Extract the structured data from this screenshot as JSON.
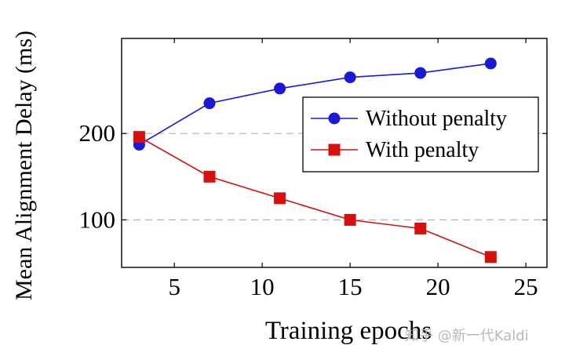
{
  "chart_data": {
    "type": "line",
    "xlabel": "Training epochs",
    "ylabel": "Mean Alignment Delay (ms)",
    "xlim": [
      2,
      26.2
    ],
    "ylim": [
      45,
      310
    ],
    "xticks": [
      5,
      10,
      15,
      20,
      25
    ],
    "yticks": [
      100,
      200
    ],
    "grid": "horizontal dashed",
    "legend_position": "top-right",
    "series": [
      {
        "name": "Without penalty",
        "color": "#1a1ad6",
        "marker": "circle",
        "x": [
          3,
          7,
          11,
          15,
          19,
          23
        ],
        "y": [
          187,
          235,
          252,
          265,
          270,
          281
        ]
      },
      {
        "name": "With penalty",
        "color": "#d60f0f",
        "marker": "square",
        "x": [
          3,
          7,
          11,
          15,
          19,
          23
        ],
        "y": [
          196,
          150,
          125,
          100,
          90,
          57
        ]
      }
    ]
  },
  "watermark": "知乎 @新一代Kaldi"
}
